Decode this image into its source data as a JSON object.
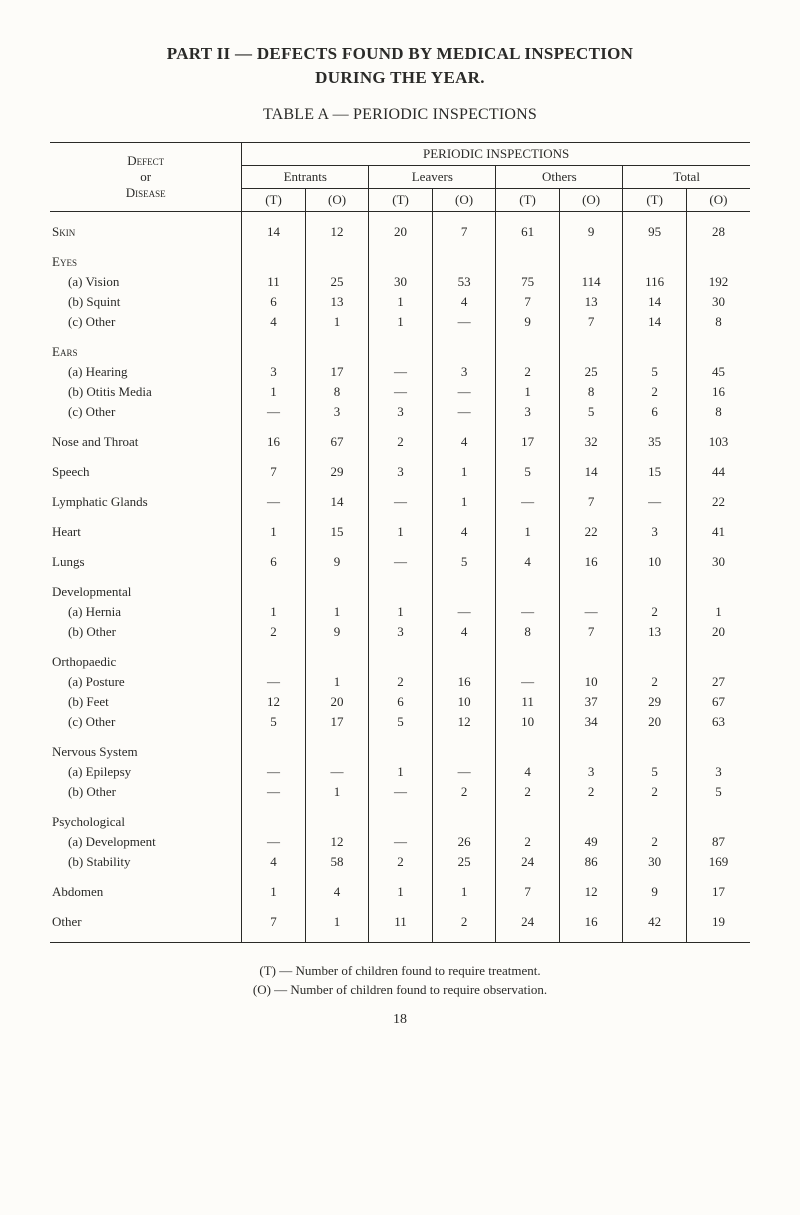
{
  "titles": {
    "main": "PART II — DEFECTS FOUND BY MEDICAL INSPECTION",
    "sub": "DURING THE YEAR.",
    "table": "TABLE A — PERIODIC INSPECTIONS"
  },
  "headers": {
    "defect1": "Defect",
    "defect2": "or",
    "defect3": "Disease",
    "periodic": "PERIODIC INSPECTIONS",
    "entrants": "Entrants",
    "leavers": "Leavers",
    "others": "Others",
    "total": "Total",
    "t": "(T)",
    "o": "(O)"
  },
  "rows": [
    {
      "type": "gap"
    },
    {
      "label": "Skin",
      "sc": true,
      "cells": [
        "14",
        "12",
        "20",
        "7",
        "61",
        "9",
        "95",
        "28"
      ]
    },
    {
      "type": "gap"
    },
    {
      "label": "Eyes",
      "sc": true,
      "header": true
    },
    {
      "label": "(a) Vision",
      "sub": true,
      "cells": [
        "11",
        "25",
        "30",
        "53",
        "75",
        "114",
        "116",
        "192"
      ]
    },
    {
      "label": "(b) Squint",
      "sub": true,
      "cells": [
        "6",
        "13",
        "1",
        "4",
        "7",
        "13",
        "14",
        "30"
      ]
    },
    {
      "label": "(c) Other",
      "sub": true,
      "cells": [
        "4",
        "1",
        "1",
        "—",
        "9",
        "7",
        "14",
        "8"
      ]
    },
    {
      "type": "gap"
    },
    {
      "label": "Ears",
      "sc": true,
      "header": true
    },
    {
      "label": "(a) Hearing",
      "sub": true,
      "cells": [
        "3",
        "17",
        "—",
        "3",
        "2",
        "25",
        "5",
        "45"
      ]
    },
    {
      "label": "(b) Otitis Media",
      "sub": true,
      "cells": [
        "1",
        "8",
        "—",
        "—",
        "1",
        "8",
        "2",
        "16"
      ]
    },
    {
      "label": "(c) Other",
      "sub": true,
      "cells": [
        "—",
        "3",
        "3",
        "—",
        "3",
        "5",
        "6",
        "8"
      ]
    },
    {
      "type": "gap"
    },
    {
      "label": "Nose and Throat",
      "cells": [
        "16",
        "67",
        "2",
        "4",
        "17",
        "32",
        "35",
        "103"
      ]
    },
    {
      "type": "gap"
    },
    {
      "label": "Speech",
      "cells": [
        "7",
        "29",
        "3",
        "1",
        "5",
        "14",
        "15",
        "44"
      ]
    },
    {
      "type": "gap"
    },
    {
      "label": "Lymphatic Glands",
      "cells": [
        "—",
        "14",
        "—",
        "1",
        "—",
        "7",
        "—",
        "22"
      ]
    },
    {
      "type": "gap"
    },
    {
      "label": "Heart",
      "cells": [
        "1",
        "15",
        "1",
        "4",
        "1",
        "22",
        "3",
        "41"
      ]
    },
    {
      "type": "gap"
    },
    {
      "label": "Lungs",
      "cells": [
        "6",
        "9",
        "—",
        "5",
        "4",
        "16",
        "10",
        "30"
      ]
    },
    {
      "type": "gap"
    },
    {
      "label": "Developmental",
      "header": true
    },
    {
      "label": "(a) Hernia",
      "sub": true,
      "cells": [
        "1",
        "1",
        "1",
        "—",
        "—",
        "—",
        "2",
        "1"
      ]
    },
    {
      "label": "(b) Other",
      "sub": true,
      "cells": [
        "2",
        "9",
        "3",
        "4",
        "8",
        "7",
        "13",
        "20"
      ]
    },
    {
      "type": "gap"
    },
    {
      "label": "Orthopaedic",
      "header": true
    },
    {
      "label": "(a) Posture",
      "sub": true,
      "cells": [
        "—",
        "1",
        "2",
        "16",
        "—",
        "10",
        "2",
        "27"
      ]
    },
    {
      "label": "(b) Feet",
      "sub": true,
      "cells": [
        "12",
        "20",
        "6",
        "10",
        "11",
        "37",
        "29",
        "67"
      ]
    },
    {
      "label": "(c) Other",
      "sub": true,
      "cells": [
        "5",
        "17",
        "5",
        "12",
        "10",
        "34",
        "20",
        "63"
      ]
    },
    {
      "type": "gap"
    },
    {
      "label": "Nervous System",
      "header": true
    },
    {
      "label": "(a) Epilepsy",
      "sub": true,
      "cells": [
        "—",
        "—",
        "1",
        "—",
        "4",
        "3",
        "5",
        "3"
      ]
    },
    {
      "label": "(b) Other",
      "sub": true,
      "cells": [
        "—",
        "1",
        "—",
        "2",
        "2",
        "2",
        "2",
        "5"
      ]
    },
    {
      "type": "gap"
    },
    {
      "label": "Psychological",
      "header": true
    },
    {
      "label": "(a) Development",
      "sub": true,
      "cells": [
        "—",
        "12",
        "—",
        "26",
        "2",
        "49",
        "2",
        "87"
      ]
    },
    {
      "label": "(b) Stability",
      "sub": true,
      "cells": [
        "4",
        "58",
        "2",
        "25",
        "24",
        "86",
        "30",
        "169"
      ]
    },
    {
      "type": "gap"
    },
    {
      "label": "Abdomen",
      "cells": [
        "1",
        "4",
        "1",
        "1",
        "7",
        "12",
        "9",
        "17"
      ]
    },
    {
      "type": "gap"
    },
    {
      "label": "Other",
      "cells": [
        "7",
        "1",
        "11",
        "2",
        "24",
        "16",
        "42",
        "19"
      ]
    },
    {
      "type": "gap"
    }
  ],
  "legend": {
    "t": "(T) — Number of children found to require treatment.",
    "o": "(O) — Number of children found to require observation."
  },
  "page": "18"
}
